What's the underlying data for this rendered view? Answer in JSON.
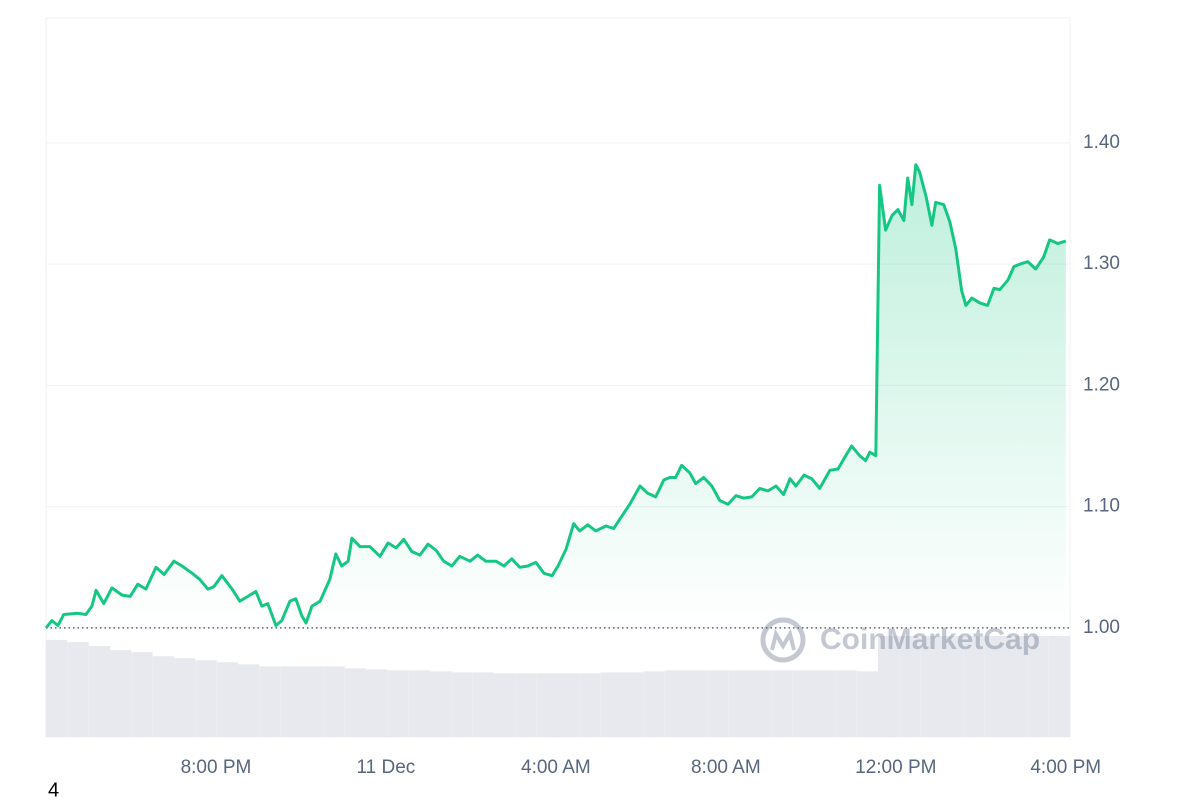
{
  "chart_data": {
    "type": "line",
    "x": [
      0,
      0.14,
      0.28,
      0.42,
      0.75,
      0.94,
      1.08,
      1.18,
      1.36,
      1.55,
      1.79,
      1.98,
      2.16,
      2.35,
      2.59,
      2.78,
      3.01,
      3.2,
      3.44,
      3.62,
      3.81,
      3.95,
      4.14,
      4.38,
      4.56,
      4.75,
      4.94,
      5.08,
      5.22,
      5.41,
      5.55,
      5.74,
      5.88,
      6.02,
      6.12,
      6.26,
      6.45,
      6.68,
      6.82,
      6.96,
      7.11,
      7.2,
      7.39,
      7.62,
      7.86,
      8.05,
      8.24,
      8.42,
      8.61,
      8.8,
      8.99,
      9.18,
      9.36,
      9.55,
      9.74,
      9.98,
      10.16,
      10.35,
      10.59,
      10.78,
      10.96,
      11.15,
      11.34,
      11.53,
      11.72,
      11.91,
      12.05,
      12.24,
      12.42,
      12.56,
      12.75,
      12.94,
      13.18,
      13.36,
      13.55,
      13.74,
      13.98,
      14.16,
      14.35,
      14.54,
      14.68,
      14.82,
      14.96,
      15.15,
      15.29,
      15.48,
      15.67,
      15.86,
      16.05,
      16.24,
      16.42,
      16.61,
      16.8,
      16.99,
      17.18,
      17.36,
      17.51,
      17.65,
      17.84,
      18.02,
      18.21,
      18.45,
      18.64,
      18.82,
      18.96,
      19.15,
      19.29,
      19.39,
      19.53,
      19.62,
      19.76,
      19.91,
      20.05,
      20.19,
      20.28,
      20.38,
      20.47,
      20.56,
      20.71,
      20.85,
      20.94,
      21.13,
      21.27,
      21.41,
      21.55,
      21.65,
      21.79,
      21.98,
      22.16,
      22.31,
      22.45,
      22.64,
      22.78,
      22.92,
      23.11,
      23.29,
      23.48,
      23.62,
      23.81,
      24
    ],
    "series": [
      {
        "color": "#16c784",
        "values": [
          1.0,
          1.006,
          1.002,
          1.011,
          1.012,
          1.011,
          1.018,
          1.031,
          1.02,
          1.033,
          1.027,
          1.026,
          1.036,
          1.032,
          1.05,
          1.044,
          1.055,
          1.051,
          1.045,
          1.04,
          1.032,
          1.034,
          1.043,
          1.032,
          1.022,
          1.026,
          1.03,
          1.018,
          1.02,
          1.002,
          1.006,
          1.022,
          1.024,
          1.01,
          1.004,
          1.018,
          1.022,
          1.04,
          1.061,
          1.051,
          1.055,
          1.074,
          1.067,
          1.067,
          1.059,
          1.07,
          1.066,
          1.073,
          1.063,
          1.06,
          1.069,
          1.064,
          1.055,
          1.051,
          1.059,
          1.055,
          1.06,
          1.055,
          1.055,
          1.051,
          1.057,
          1.05,
          1.051,
          1.054,
          1.045,
          1.043,
          1.051,
          1.065,
          1.086,
          1.08,
          1.085,
          1.08,
          1.084,
          1.082,
          1.092,
          1.102,
          1.117,
          1.111,
          1.108,
          1.122,
          1.124,
          1.124,
          1.134,
          1.128,
          1.119,
          1.124,
          1.117,
          1.105,
          1.102,
          1.109,
          1.107,
          1.108,
          1.115,
          1.113,
          1.117,
          1.11,
          1.123,
          1.117,
          1.126,
          1.123,
          1.115,
          1.13,
          1.131,
          1.142,
          1.15,
          1.142,
          1.138,
          1.145,
          1.142,
          1.365,
          1.328,
          1.34,
          1.345,
          1.336,
          1.371,
          1.349,
          1.382,
          1.376,
          1.356,
          1.332,
          1.351,
          1.349,
          1.335,
          1.313,
          1.278,
          1.266,
          1.272,
          1.268,
          1.266,
          1.28,
          1.279,
          1.287,
          1.298,
          1.3,
          1.302,
          1.296,
          1.306,
          1.32,
          1.317,
          1.319
        ]
      }
    ],
    "volume": {
      "color": "#e7e9ee",
      "values": [
        96,
        94,
        90,
        86,
        84,
        80,
        78,
        76,
        74,
        72,
        70,
        70,
        70,
        70,
        68,
        67,
        66,
        66,
        65,
        64,
        64,
        63,
        63,
        63,
        63,
        63,
        64,
        64,
        65,
        66,
        66,
        66,
        66,
        66,
        66,
        66,
        66,
        66,
        65,
        100,
        100,
        100,
        100,
        100,
        100,
        100,
        100,
        100
      ]
    },
    "xlim": [
      0,
      24.1
    ],
    "xticks": [
      {
        "value": 4,
        "label": "8:00 PM"
      },
      {
        "value": 8,
        "label": "11 Dec"
      },
      {
        "value": 12,
        "label": "4:00 AM"
      },
      {
        "value": 16,
        "label": "8:00 AM"
      },
      {
        "value": 20,
        "label": "12:00 PM"
      },
      {
        "value": 24,
        "label": "4:00 PM"
      }
    ],
    "ylim": [
      0.91,
      1.503
    ],
    "yticks": [
      {
        "value": 1,
        "label": "1.00"
      },
      {
        "value": 1.1,
        "label": "1.10"
      },
      {
        "value": 1.2,
        "label": "1.20"
      },
      {
        "value": 1.3,
        "label": "1.30"
      },
      {
        "value": 1.4,
        "label": "1.40"
      }
    ],
    "reference_line": 1,
    "grid": true,
    "watermark": "CoinMarketCap",
    "footnote": "4"
  }
}
